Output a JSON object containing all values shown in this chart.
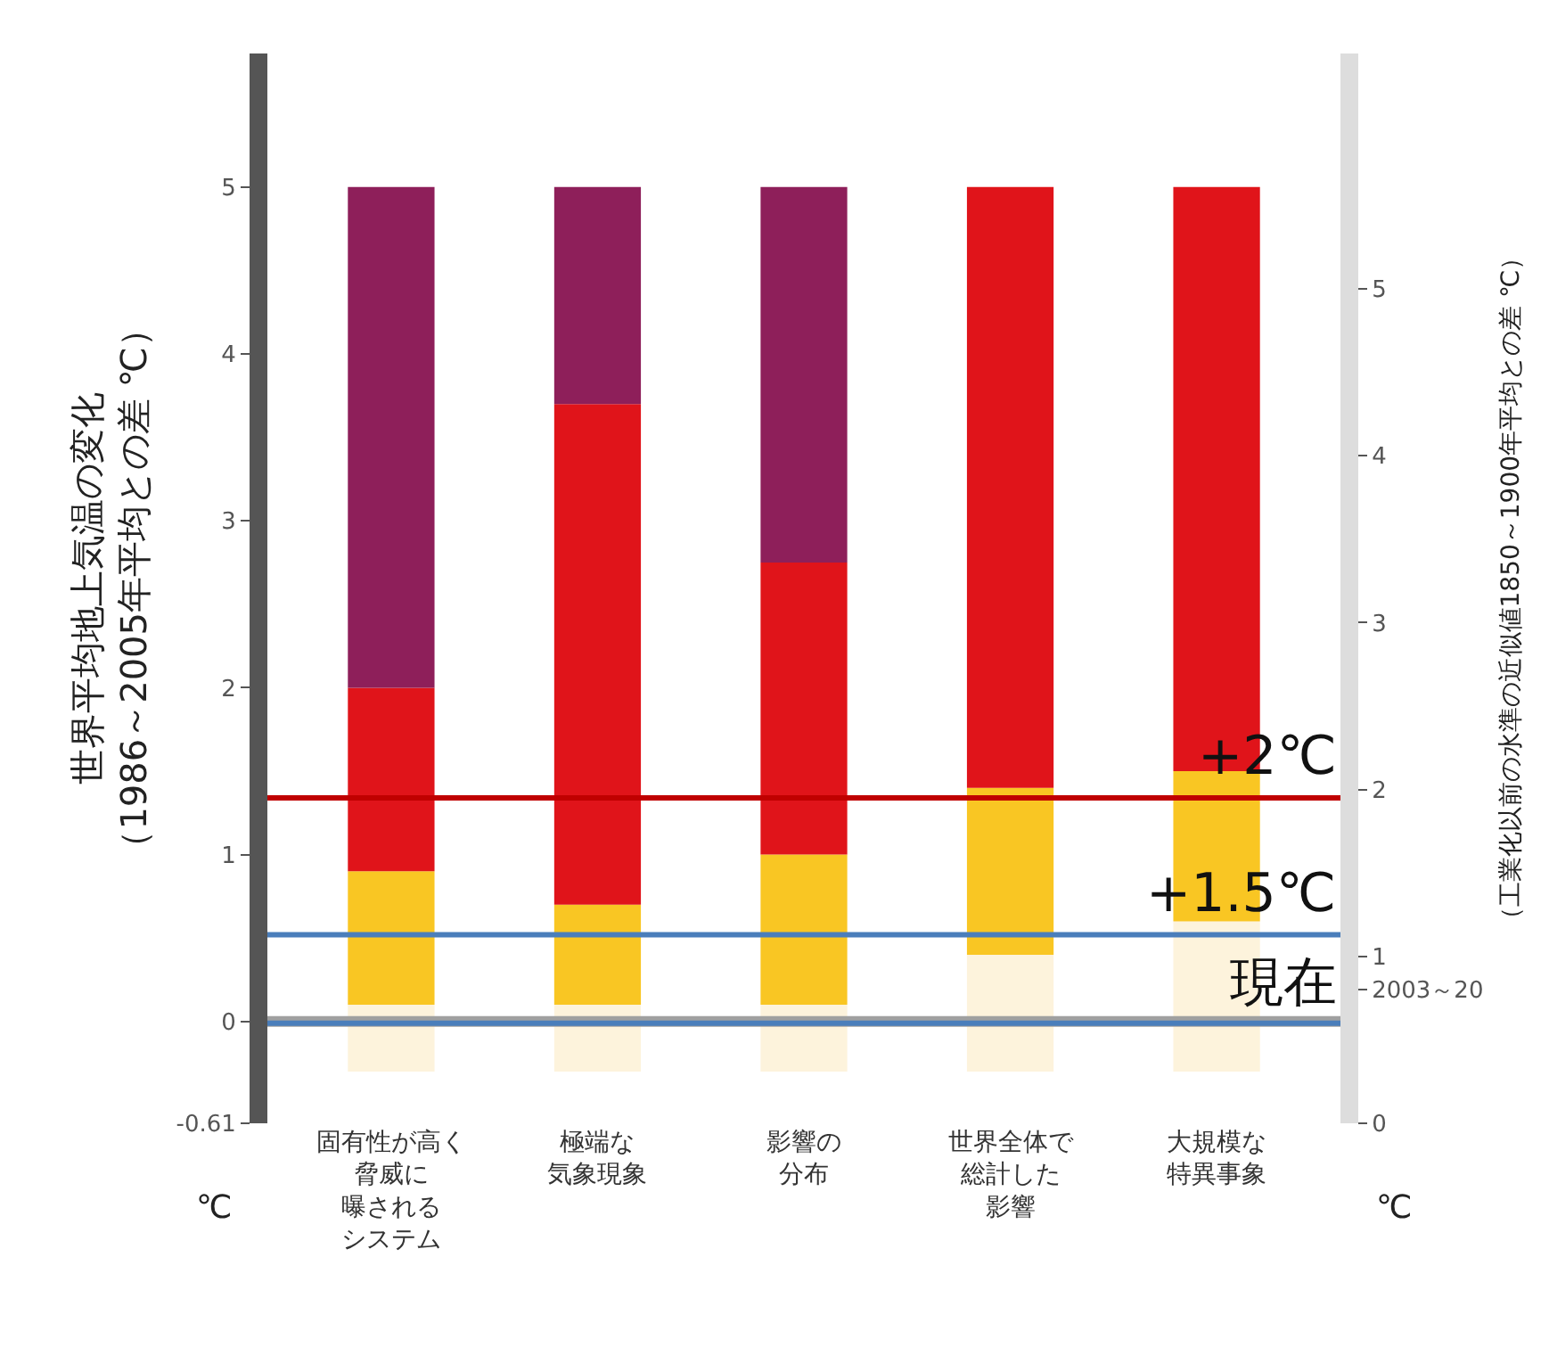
{
  "chart_data": {
    "type": "bar",
    "stacked": true,
    "ylabel": "世界平均地上気温の変化（1986～2005年平均との差 ℃）",
    "y2label": "（工業化以前の水準の近似値1850～1900年平均との差 ℃）",
    "categories": [
      "固有性が高く脅威に曝されるシステム",
      "極端な気象現象",
      "影響の分布",
      "世界全体で総計した影響",
      "大規模な特異事象"
    ],
    "series": [
      {
        "color": "#fdf3dc",
        "values": [
          -0.3,
          -0.3,
          -0.3,
          -0.3,
          -0.3
        ]
      },
      {
        "color": "#fdf3dc",
        "values": [
          0.1,
          0.1,
          0.1,
          0.4,
          0.6
        ]
      },
      {
        "color": "#f9c623",
        "values": [
          0.8,
          0.6,
          0.9,
          1.0,
          0.9
        ]
      },
      {
        "color": "#e0141a",
        "values": [
          1.1,
          3.0,
          1.75,
          3.6,
          3.5
        ]
      },
      {
        "color": "#8e1f5a",
        "values": [
          3.0,
          1.3,
          2.25,
          0,
          0
        ]
      }
    ],
    "ylim": [
      -0.61,
      5.8
    ],
    "yticks": [
      {
        "value": -0.61,
        "label": "-0.61"
      },
      0,
      1,
      2,
      3,
      4,
      5
    ],
    "y2lim": [
      0,
      6.41
    ],
    "y2ticks": [
      0,
      {
        "value": 0.8,
        "label": "2003～20"
      },
      1,
      2,
      3,
      4,
      5
    ],
    "ref_lines": [
      {
        "axis": "y",
        "value": 0,
        "label": null,
        "color": "#a0a0a0"
      },
      {
        "axis": "y2",
        "value": 1.95,
        "label": "+2℃",
        "color": "#c00000"
      },
      {
        "axis": "y2",
        "value": 1.13,
        "label": "+1.5℃",
        "color": "#4a7ebb"
      },
      {
        "axis": "y",
        "value": -0.01,
        "label": "現在",
        "color": "#4a7ebb"
      }
    ],
    "annotations": [
      "℃",
      "℃"
    ],
    "legend": false
  }
}
